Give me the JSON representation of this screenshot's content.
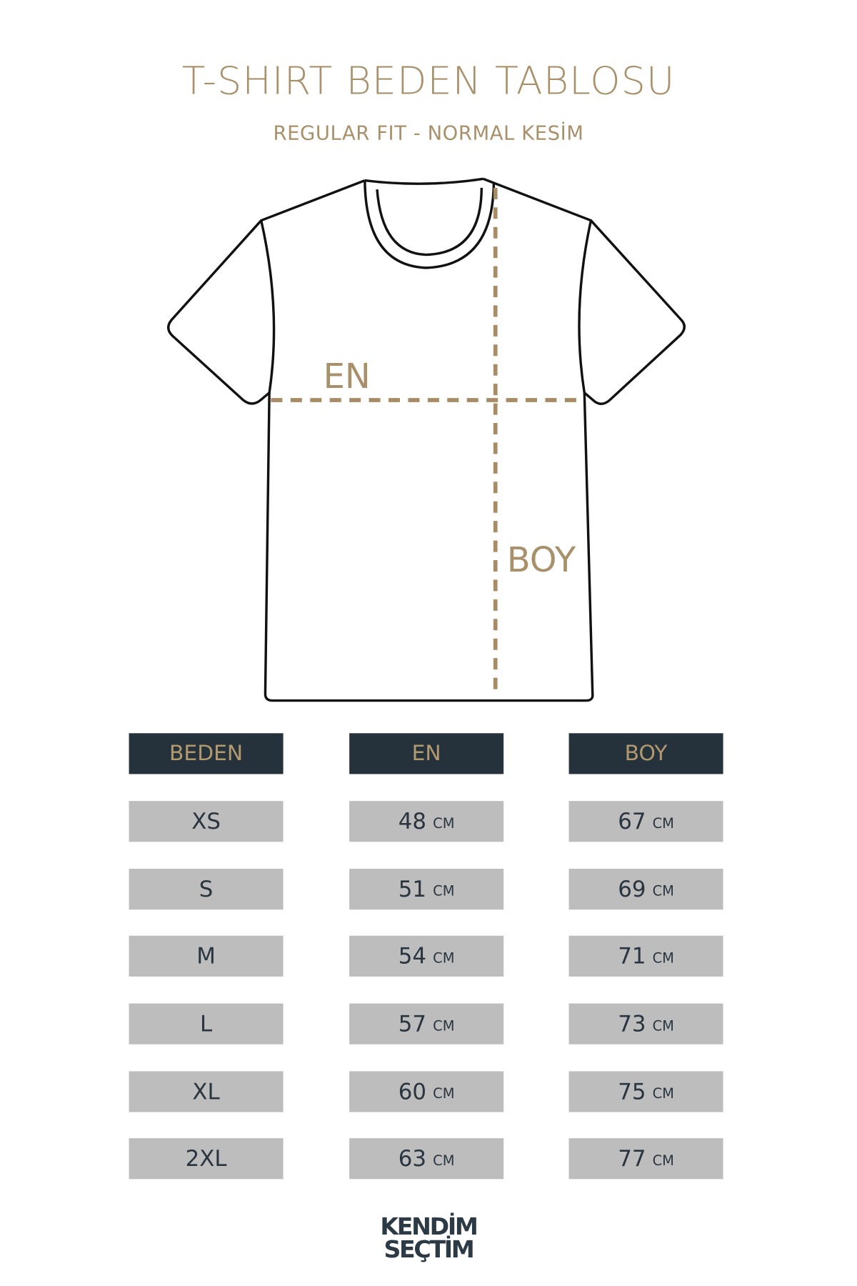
{
  "header": {
    "title": "T-SHIRT BEDEN TABLOSU",
    "subtitle": "REGULAR FIT - NORMAL KESİM"
  },
  "diagram": {
    "width_label": "EN",
    "length_label": "BOY"
  },
  "table": {
    "headers": [
      "BEDEN",
      "EN",
      "BOY"
    ],
    "unit": "CM",
    "rows": [
      {
        "size": "XS",
        "en": "48",
        "boy": "67"
      },
      {
        "size": "S",
        "en": "51",
        "boy": "69"
      },
      {
        "size": "M",
        "en": "54",
        "boy": "71"
      },
      {
        "size": "L",
        "en": "57",
        "boy": "73"
      },
      {
        "size": "XL",
        "en": "60",
        "boy": "75"
      },
      {
        "size": "2XL",
        "en": "63",
        "boy": "77"
      }
    ]
  },
  "logo": {
    "line1": "KENDİM",
    "line2": "SEÇTİM"
  },
  "colors": {
    "accent": "#a8916a",
    "header_bg": "#25323c",
    "cell_bg": "#bdbdbd",
    "logo": "#2c3a45"
  }
}
